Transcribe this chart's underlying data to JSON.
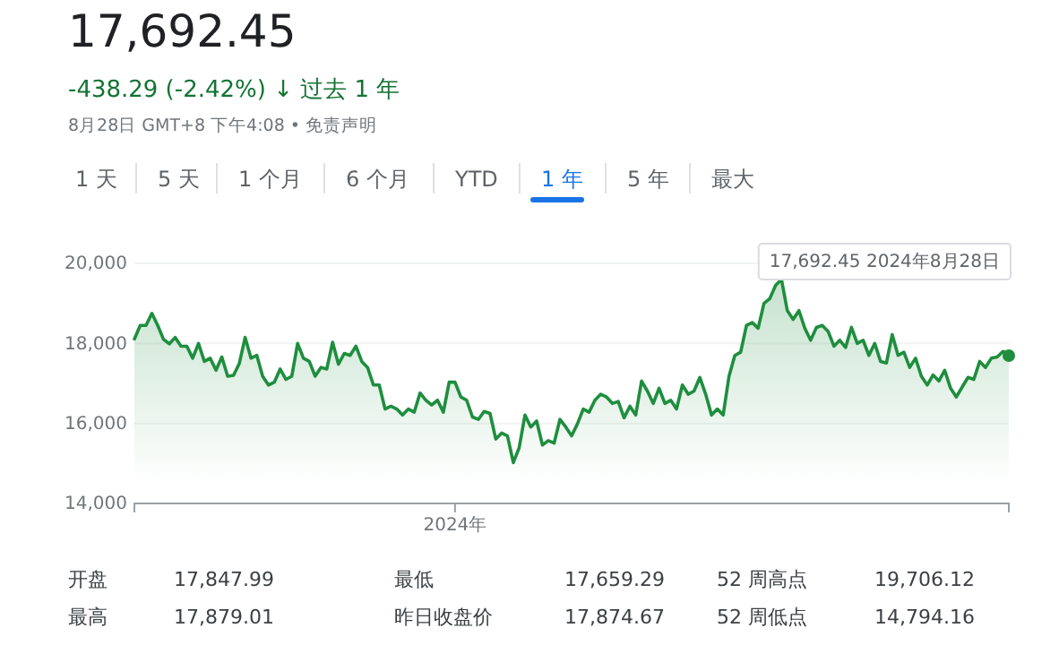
{
  "chart_data": {
    "type": "area",
    "title": "17,692.45",
    "subtitle": "-438.29 (-2.42%) ↓ 过去 1 年",
    "annotations": [
      "8月28日 GMT+8 下午4:08 • 免责声明",
      "1 天",
      "5 天",
      "1 个月",
      "6 个月",
      "YTD",
      "1 年",
      "5 年",
      "最大",
      "开盘",
      "17,847.99",
      "最低",
      "17,659.29",
      "52 周高点",
      "19,706.12",
      "最高",
      "17,879.01",
      "昨日收盘价",
      "17,874.67",
      "52 周低点",
      "14,794.16",
      "17,692.45  2024年8月28日"
    ],
    "categories": [
      null,
      null,
      null,
      null,
      null,
      null,
      null,
      null,
      null,
      null,
      null,
      null,
      null,
      null,
      null,
      null,
      null,
      null,
      null,
      null,
      null,
      null,
      null,
      null,
      null,
      null,
      null,
      null,
      null,
      null,
      null,
      null,
      null,
      null,
      null,
      null,
      null,
      null,
      null,
      null,
      null,
      null,
      null,
      null,
      null,
      null,
      null,
      null,
      null,
      null,
      null,
      null,
      null,
      null,
      null,
      "2024年",
      null,
      null,
      null,
      null,
      null,
      null,
      null,
      null,
      null,
      null,
      null,
      null,
      null,
      null,
      null,
      null,
      null,
      null,
      null,
      null,
      null,
      null,
      null,
      null,
      null,
      null,
      null,
      null,
      null,
      null,
      null,
      null,
      null,
      null,
      null,
      null,
      null,
      null,
      null,
      null,
      null,
      null,
      null,
      null,
      null,
      null,
      null,
      null,
      null,
      null,
      null,
      null,
      null,
      null,
      null,
      null,
      null,
      null,
      null,
      null,
      null,
      null,
      null,
      null,
      null,
      null,
      null,
      null,
      null,
      null,
      null,
      null,
      null,
      null,
      null,
      null,
      null,
      null,
      null,
      null,
      null,
      null,
      null,
      null,
      null,
      null,
      null,
      null,
      null,
      null,
      null,
      null,
      null,
      null,
      null
    ],
    "series": [
      {
        "color": "#1e8e3e",
        "values": [
          18110,
          18450,
          18450,
          18750,
          18450,
          18100,
          17990,
          18150,
          17930,
          17930,
          17630,
          18000,
          17550,
          17630,
          17330,
          17660,
          17180,
          17200,
          17500,
          18150,
          17630,
          17700,
          17180,
          16960,
          17030,
          17360,
          17100,
          17180,
          18000,
          17630,
          17550,
          17180,
          17400,
          17360,
          18030,
          17480,
          17750,
          17700,
          17930,
          17550,
          17400,
          16960,
          16960,
          16360,
          16430,
          16360,
          16210,
          16360,
          16280,
          16760,
          16580,
          16460,
          16580,
          16280,
          17030,
          17030,
          16660,
          16580,
          16160,
          16100,
          16300,
          16250,
          15610,
          15760,
          15690,
          15020,
          15390,
          16210,
          15910,
          16060,
          15460,
          15570,
          15510,
          16100,
          15910,
          15690,
          15990,
          16360,
          16280,
          16580,
          16730,
          16660,
          16500,
          16550,
          16140,
          16430,
          16210,
          17060,
          16810,
          16500,
          16880,
          16500,
          16580,
          16360,
          16960,
          16730,
          16810,
          17150,
          16730,
          16210,
          16360,
          16210,
          17180,
          17700,
          17780,
          18450,
          18520,
          18380,
          19000,
          19120,
          19450,
          19600,
          18820,
          18600,
          18820,
          18380,
          18080,
          18400,
          18450,
          18300,
          17930,
          18080,
          17900,
          18400,
          18000,
          18080,
          17700,
          18000,
          17550,
          17510,
          18220,
          17700,
          17780,
          17400,
          17630,
          17180,
          16960,
          17210,
          17060,
          17330,
          16880,
          16660,
          16910,
          17150,
          17100,
          17550,
          17400,
          17630,
          17660,
          17800,
          17692.45
        ]
      }
    ],
    "ylim": [
      14000,
      20000
    ],
    "yticks": [
      {
        "value": 14000,
        "label": "14,000"
      },
      {
        "value": 16000,
        "label": "16,000"
      },
      {
        "value": 18000,
        "label": "18,000"
      },
      {
        "value": 20000,
        "label": "20,000"
      }
    ],
    "grid": "y"
  }
}
